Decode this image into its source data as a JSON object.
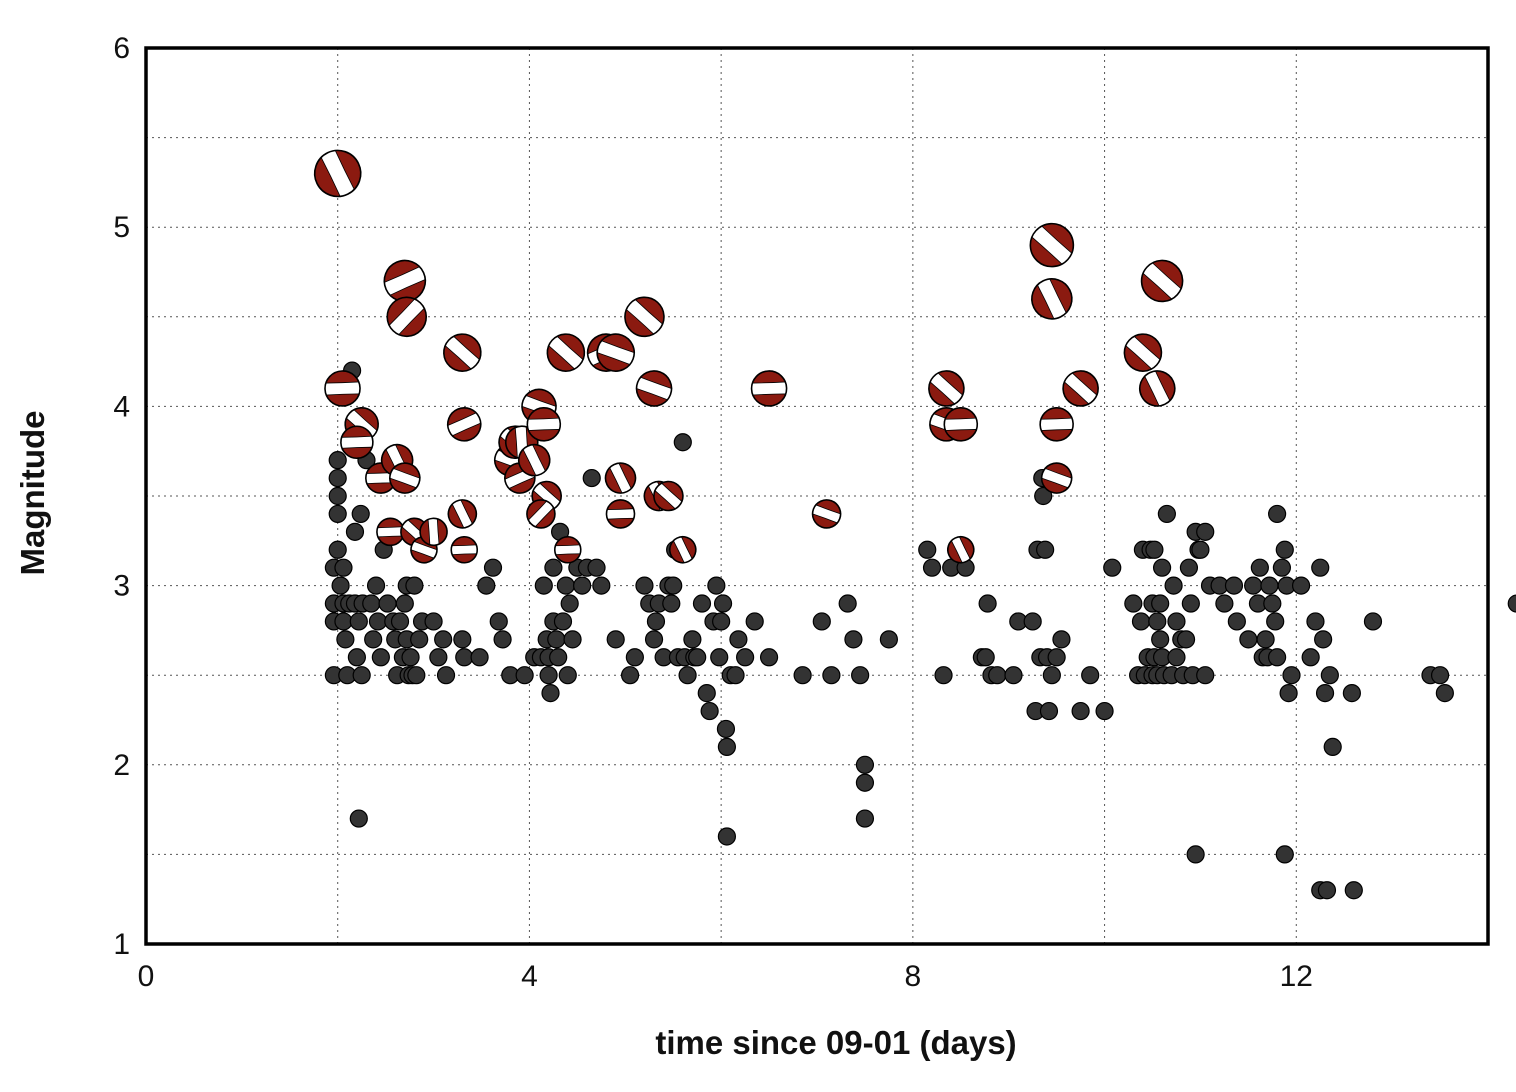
{
  "chart_data": {
    "type": "scatter",
    "xlabel": "time since 09-01 (days)",
    "ylabel": "Magnitude",
    "xlim": [
      0,
      14
    ],
    "ylim": [
      1,
      6
    ],
    "x_ticks": [
      0,
      4,
      8,
      12
    ],
    "y_ticks": [
      1,
      2,
      3,
      4,
      5,
      6
    ],
    "x_minor_grid": [
      2,
      6,
      10
    ],
    "y_minor_grid": [
      1.5,
      2.5,
      3.5,
      4.5,
      5.5
    ],
    "grid": true,
    "grid_style": "dotted",
    "legend": "none",
    "series": [
      {
        "kind": "events",
        "marker": "filled circle",
        "color": "#333333",
        "points": [
          [
            1.96,
            2.5
          ],
          [
            1.96,
            2.8
          ],
          [
            1.96,
            2.9
          ],
          [
            1.96,
            3.1
          ],
          [
            2.0,
            3.2
          ],
          [
            2.0,
            3.4
          ],
          [
            2.0,
            3.5
          ],
          [
            2.0,
            3.6
          ],
          [
            2.0,
            3.7
          ],
          [
            2.03,
            3.0
          ],
          [
            2.06,
            2.8
          ],
          [
            2.06,
            2.9
          ],
          [
            2.06,
            3.1
          ],
          [
            2.08,
            2.7
          ],
          [
            2.1,
            2.5
          ],
          [
            2.12,
            2.9
          ],
          [
            2.15,
            4.2
          ],
          [
            2.18,
            2.9
          ],
          [
            2.18,
            3.3
          ],
          [
            2.2,
            2.6
          ],
          [
            2.22,
            2.8
          ],
          [
            2.24,
            3.4
          ],
          [
            2.25,
            2.5
          ],
          [
            2.22,
            1.7
          ],
          [
            2.26,
            2.9
          ],
          [
            2.3,
            3.7
          ],
          [
            2.35,
            2.9
          ],
          [
            2.37,
            2.7
          ],
          [
            2.4,
            3.0
          ],
          [
            2.42,
            2.8
          ],
          [
            2.45,
            2.6
          ],
          [
            2.48,
            3.2
          ],
          [
            2.52,
            2.9
          ],
          [
            2.58,
            2.8
          ],
          [
            2.6,
            2.7
          ],
          [
            2.62,
            2.5
          ],
          [
            2.65,
            2.8
          ],
          [
            2.68,
            2.6
          ],
          [
            2.7,
            2.9
          ],
          [
            2.72,
            2.7
          ],
          [
            2.72,
            3.0
          ],
          [
            2.74,
            2.5
          ],
          [
            2.76,
            2.6
          ],
          [
            2.78,
            2.5
          ],
          [
            2.8,
            3.0
          ],
          [
            2.82,
            2.5
          ],
          [
            2.85,
            2.7
          ],
          [
            2.88,
            2.8
          ],
          [
            3.0,
            2.8
          ],
          [
            3.05,
            2.6
          ],
          [
            3.1,
            2.7
          ],
          [
            3.13,
            2.5
          ],
          [
            3.3,
            2.7
          ],
          [
            3.32,
            2.6
          ],
          [
            3.48,
            2.6
          ],
          [
            3.55,
            3.0
          ],
          [
            3.62,
            3.1
          ],
          [
            3.68,
            2.8
          ],
          [
            3.72,
            2.7
          ],
          [
            3.8,
            2.5
          ],
          [
            3.95,
            2.5
          ],
          [
            4.05,
            2.6
          ],
          [
            4.12,
            2.6
          ],
          [
            4.15,
            3.0
          ],
          [
            4.18,
            2.7
          ],
          [
            4.2,
            2.5
          ],
          [
            4.2,
            2.6
          ],
          [
            4.22,
            2.4
          ],
          [
            4.25,
            2.8
          ],
          [
            4.25,
            3.1
          ],
          [
            4.28,
            2.7
          ],
          [
            4.3,
            2.6
          ],
          [
            4.32,
            3.3
          ],
          [
            4.35,
            2.8
          ],
          [
            4.38,
            3.0
          ],
          [
            4.4,
            2.5
          ],
          [
            4.42,
            2.9
          ],
          [
            4.45,
            2.7
          ],
          [
            4.5,
            3.1
          ],
          [
            4.55,
            3.0
          ],
          [
            4.6,
            3.1
          ],
          [
            4.65,
            3.6
          ],
          [
            4.7,
            3.1
          ],
          [
            4.75,
            3.0
          ],
          [
            4.9,
            2.7
          ],
          [
            5.05,
            2.5
          ],
          [
            5.1,
            2.6
          ],
          [
            5.2,
            3.0
          ],
          [
            5.25,
            2.9
          ],
          [
            5.3,
            2.7
          ],
          [
            5.32,
            2.8
          ],
          [
            5.35,
            2.9
          ],
          [
            5.4,
            2.6
          ],
          [
            5.45,
            3.0
          ],
          [
            5.48,
            2.9
          ],
          [
            5.5,
            3.0
          ],
          [
            5.52,
            3.2
          ],
          [
            5.55,
            2.6
          ],
          [
            5.58,
            3.2
          ],
          [
            5.6,
            3.8
          ],
          [
            5.62,
            2.6
          ],
          [
            5.65,
            2.5
          ],
          [
            5.7,
            2.7
          ],
          [
            5.72,
            2.6
          ],
          [
            5.75,
            2.6
          ],
          [
            5.8,
            2.9
          ],
          [
            5.85,
            2.4
          ],
          [
            5.88,
            2.3
          ],
          [
            5.92,
            2.8
          ],
          [
            5.95,
            3.0
          ],
          [
            5.98,
            2.6
          ],
          [
            6.0,
            2.8
          ],
          [
            6.02,
            2.9
          ],
          [
            6.05,
            2.2
          ],
          [
            6.06,
            2.1
          ],
          [
            6.06,
            1.6
          ],
          [
            6.1,
            2.5
          ],
          [
            6.15,
            2.5
          ],
          [
            6.18,
            2.7
          ],
          [
            6.25,
            2.6
          ],
          [
            6.35,
            2.8
          ],
          [
            6.5,
            2.6
          ],
          [
            6.85,
            2.5
          ],
          [
            7.05,
            2.8
          ],
          [
            7.15,
            2.5
          ],
          [
            7.32,
            2.9
          ],
          [
            7.38,
            2.7
          ],
          [
            7.45,
            2.5
          ],
          [
            7.5,
            2.0
          ],
          [
            7.5,
            1.9
          ],
          [
            7.5,
            1.7
          ],
          [
            7.75,
            2.7
          ],
          [
            8.15,
            3.2
          ],
          [
            8.2,
            3.1
          ],
          [
            8.32,
            2.5
          ],
          [
            8.4,
            3.1
          ],
          [
            8.55,
            3.1
          ],
          [
            8.72,
            2.6
          ],
          [
            8.76,
            2.6
          ],
          [
            8.78,
            2.9
          ],
          [
            8.82,
            2.5
          ],
          [
            8.88,
            2.5
          ],
          [
            9.05,
            2.5
          ],
          [
            9.1,
            2.8
          ],
          [
            9.25,
            2.8
          ],
          [
            9.28,
            2.3
          ],
          [
            9.3,
            3.2
          ],
          [
            9.33,
            2.6
          ],
          [
            9.35,
            3.6
          ],
          [
            9.36,
            3.5
          ],
          [
            9.38,
            3.2
          ],
          [
            9.4,
            2.6
          ],
          [
            9.42,
            2.3
          ],
          [
            9.45,
            2.5
          ],
          [
            9.5,
            2.6
          ],
          [
            9.55,
            2.7
          ],
          [
            9.75,
            2.3
          ],
          [
            9.85,
            2.5
          ],
          [
            10.0,
            2.3
          ],
          [
            10.08,
            3.1
          ],
          [
            10.3,
            2.9
          ],
          [
            10.35,
            2.5
          ],
          [
            10.38,
            2.8
          ],
          [
            10.4,
            3.2
          ],
          [
            10.42,
            2.5
          ],
          [
            10.45,
            2.6
          ],
          [
            10.48,
            3.2
          ],
          [
            10.5,
            2.5
          ],
          [
            10.5,
            2.9
          ],
          [
            10.52,
            3.2
          ],
          [
            10.52,
            2.6
          ],
          [
            10.55,
            2.8
          ],
          [
            10.55,
            2.5
          ],
          [
            10.58,
            2.7
          ],
          [
            10.58,
            2.9
          ],
          [
            10.6,
            2.6
          ],
          [
            10.6,
            3.1
          ],
          [
            10.62,
            2.5
          ],
          [
            10.65,
            3.4
          ],
          [
            10.7,
            2.5
          ],
          [
            10.72,
            3.0
          ],
          [
            10.75,
            2.8
          ],
          [
            10.75,
            2.6
          ],
          [
            10.8,
            2.7
          ],
          [
            10.82,
            2.5
          ],
          [
            10.85,
            2.7
          ],
          [
            10.88,
            3.1
          ],
          [
            10.9,
            2.9
          ],
          [
            10.92,
            2.5
          ],
          [
            10.95,
            3.3
          ],
          [
            10.98,
            3.2
          ],
          [
            10.95,
            1.5
          ],
          [
            11.0,
            3.2
          ],
          [
            11.05,
            3.3
          ],
          [
            11.05,
            2.5
          ],
          [
            11.1,
            3.0
          ],
          [
            11.2,
            3.0
          ],
          [
            11.25,
            2.9
          ],
          [
            11.35,
            3.0
          ],
          [
            11.38,
            2.8
          ],
          [
            11.5,
            2.7
          ],
          [
            11.55,
            3.0
          ],
          [
            11.6,
            2.9
          ],
          [
            11.62,
            3.1
          ],
          [
            11.65,
            2.6
          ],
          [
            11.68,
            2.7
          ],
          [
            11.7,
            2.6
          ],
          [
            11.72,
            3.0
          ],
          [
            11.75,
            2.9
          ],
          [
            11.78,
            2.8
          ],
          [
            11.8,
            2.6
          ],
          [
            11.8,
            3.4
          ],
          [
            11.85,
            3.1
          ],
          [
            11.88,
            3.2
          ],
          [
            11.9,
            3.0
          ],
          [
            11.88,
            1.5
          ],
          [
            11.92,
            2.4
          ],
          [
            11.95,
            2.5
          ],
          [
            12.05,
            3.0
          ],
          [
            12.15,
            2.6
          ],
          [
            12.2,
            2.8
          ],
          [
            12.25,
            3.1
          ],
          [
            12.28,
            2.7
          ],
          [
            12.3,
            2.4
          ],
          [
            12.35,
            2.5
          ],
          [
            12.25,
            1.3
          ],
          [
            12.32,
            1.3
          ],
          [
            12.38,
            2.1
          ],
          [
            12.58,
            2.4
          ],
          [
            12.6,
            1.3
          ],
          [
            12.8,
            2.8
          ],
          [
            13.4,
            2.5
          ],
          [
            13.5,
            2.5
          ],
          [
            13.55,
            2.4
          ],
          [
            14.3,
            2.9
          ]
        ]
      },
      {
        "kind": "focal-mechanisms",
        "marker": "beachball",
        "color": "#8b1a10",
        "points": [
          [
            2.0,
            5.3,
            14
          ],
          [
            2.05,
            4.1,
            8
          ],
          [
            2.25,
            3.9,
            12
          ],
          [
            2.2,
            3.8,
            8
          ],
          [
            2.45,
            3.6,
            8
          ],
          [
            2.62,
            3.7,
            14
          ],
          [
            2.7,
            3.6,
            10
          ],
          [
            2.7,
            4.7,
            6
          ],
          [
            2.72,
            4.5,
            4
          ],
          [
            2.55,
            3.3,
            8
          ],
          [
            2.8,
            3.3,
            12
          ],
          [
            2.9,
            3.2,
            10
          ],
          [
            3.0,
            3.3,
            16
          ],
          [
            3.3,
            4.3,
            12
          ],
          [
            3.32,
            3.9,
            6
          ],
          [
            3.3,
            3.4,
            14
          ],
          [
            3.32,
            3.2,
            8
          ],
          [
            3.8,
            3.7,
            10
          ],
          [
            3.85,
            3.8,
            12
          ],
          [
            3.9,
            3.6,
            6
          ],
          [
            3.92,
            3.8,
            16
          ],
          [
            4.05,
            3.7,
            14
          ],
          [
            4.1,
            4.0,
            10
          ],
          [
            4.15,
            3.9,
            8
          ],
          [
            4.18,
            3.5,
            12
          ],
          [
            4.12,
            3.4,
            4
          ],
          [
            4.38,
            4.3,
            12
          ],
          [
            4.4,
            3.2,
            8
          ],
          [
            4.8,
            4.3,
            6
          ],
          [
            4.9,
            4.3,
            10
          ],
          [
            4.95,
            3.6,
            14
          ],
          [
            4.95,
            3.4,
            8
          ],
          [
            5.2,
            4.5,
            12
          ],
          [
            5.3,
            4.1,
            10
          ],
          [
            5.35,
            3.5,
            14
          ],
          [
            5.45,
            3.5,
            12
          ],
          [
            5.6,
            3.2,
            14
          ],
          [
            6.5,
            4.1,
            8
          ],
          [
            7.1,
            3.4,
            10
          ],
          [
            8.35,
            4.1,
            12
          ],
          [
            8.35,
            3.9,
            10
          ],
          [
            8.5,
            3.9,
            8
          ],
          [
            8.5,
            3.2,
            14
          ],
          [
            9.45,
            4.9,
            12
          ],
          [
            9.45,
            4.6,
            14
          ],
          [
            9.5,
            3.9,
            8
          ],
          [
            9.5,
            3.6,
            10
          ],
          [
            9.75,
            4.1,
            12
          ],
          [
            10.4,
            4.3,
            12
          ],
          [
            10.55,
            4.1,
            14
          ],
          [
            10.6,
            4.7,
            12
          ]
        ]
      }
    ]
  }
}
